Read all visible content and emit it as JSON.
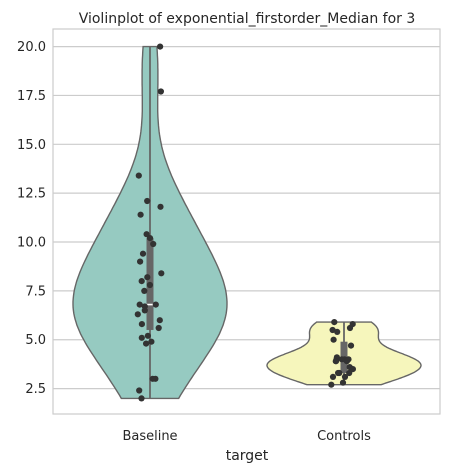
{
  "chart_data": {
    "type": "violin",
    "title": "Violinplot of exponential_firstorder_Median for 3",
    "xlabel": "target",
    "ylabel": "",
    "ylim": [
      1.2,
      20.9
    ],
    "yticks": [
      "2.5",
      "5.0",
      "7.5",
      "10.0",
      "12.5",
      "15.0",
      "17.5",
      "20.0"
    ],
    "grid": "horizontal",
    "categories": [
      "Baseline",
      "Controls"
    ],
    "colors": {
      "Baseline": "#96cac1",
      "Controls": "#f6f6bc",
      "outline": "#666666",
      "points": "#333333",
      "box": "#666666"
    },
    "series": [
      {
        "name": "Baseline",
        "min": 2.0,
        "max": 20.0,
        "q1": 5.5,
        "median": 6.8,
        "q3": 10.2,
        "points": [
          20.0,
          17.7,
          13.4,
          12.1,
          11.8,
          11.4,
          10.4,
          10.2,
          9.9,
          9.4,
          9.0,
          8.4,
          8.2,
          8.0,
          7.8,
          7.5,
          6.8,
          6.8,
          6.7,
          6.5,
          6.3,
          6.0,
          5.8,
          5.6,
          5.2,
          5.1,
          4.9,
          4.8,
          3.0,
          3.0,
          2.4,
          2.0
        ]
      },
      {
        "name": "Controls",
        "min": 2.7,
        "max": 5.9,
        "q1": 3.3,
        "median": 3.9,
        "q3": 4.9,
        "points": [
          5.9,
          5.8,
          5.6,
          5.5,
          5.4,
          5.0,
          4.7,
          4.1,
          4.0,
          4.0,
          4.0,
          4.0,
          3.9,
          3.9,
          3.9,
          3.6,
          3.5,
          3.3,
          3.3,
          3.3,
          3.1,
          3.1,
          2.8,
          2.7
        ]
      }
    ]
  }
}
